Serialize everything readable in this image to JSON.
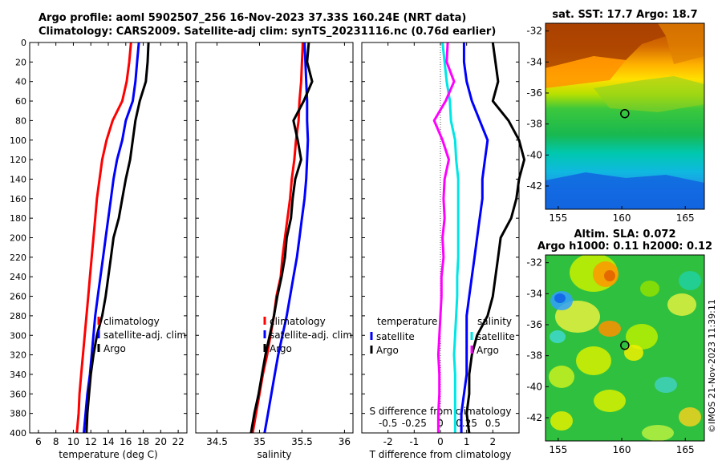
{
  "title": {
    "line1": "Argo profile: aoml 5902507_256 16-Nov-2023 37.33S 160.24E (NRT data)",
    "line2": "Climatology: CARS2009. Satellite-adj clim: synTS_20231116.nc (0.76d earlier)"
  },
  "credit": "©IMOS 21-Nov-2023 11:39:11",
  "colors": {
    "climatology": "#ff0000",
    "satellite": "#0000ff",
    "argo": "#000000",
    "salinity_sat": "#00e5e5",
    "salinity_argo": "#ff00ff"
  },
  "chart_data": [
    {
      "type": "line",
      "id": "temperature",
      "xlabel": "temperature (deg C)",
      "ylabel": "",
      "xlim": [
        5,
        23
      ],
      "ylim": [
        400,
        0
      ],
      "xticks": [
        "6",
        "8",
        "10",
        "12",
        "14",
        "16",
        "18",
        "20",
        "22"
      ],
      "xtick_values": [
        6,
        8,
        10,
        12,
        14,
        16,
        18,
        20,
        22
      ],
      "yticks": [
        0,
        20,
        40,
        60,
        80,
        100,
        120,
        140,
        160,
        180,
        200,
        220,
        240,
        260,
        280,
        300,
        320,
        340,
        360,
        380,
        400
      ],
      "legend": [
        "climatology",
        "satellite-adj. clim",
        "Argo"
      ],
      "series": [
        {
          "name": "climatology",
          "color": "#ff0000",
          "x": [
            16.6,
            16.4,
            16.1,
            15.6,
            14.5,
            13.8,
            13.3,
            13.0,
            12.7,
            12.5,
            12.3,
            12.1,
            11.9,
            11.7,
            11.5,
            11.3,
            11.1,
            10.9,
            10.7,
            10.6,
            10.4
          ],
          "y": [
            0,
            20,
            40,
            60,
            80,
            100,
            120,
            140,
            160,
            180,
            200,
            220,
            240,
            260,
            280,
            300,
            320,
            340,
            360,
            380,
            400
          ]
        },
        {
          "name": "satellite-adj. clim",
          "color": "#0000ff",
          "x": [
            17.5,
            17.3,
            17.1,
            16.8,
            16.0,
            15.6,
            15.0,
            14.6,
            14.3,
            14.0,
            13.7,
            13.4,
            13.1,
            12.8,
            12.5,
            12.3,
            12.1,
            11.9,
            11.6,
            11.4,
            11.2
          ],
          "y": [
            0,
            20,
            40,
            60,
            80,
            100,
            120,
            140,
            160,
            180,
            200,
            220,
            240,
            260,
            280,
            300,
            320,
            340,
            360,
            380,
            400
          ]
        },
        {
          "name": "Argo",
          "color": "#000000",
          "x": [
            18.6,
            18.5,
            18.3,
            17.6,
            17.1,
            16.8,
            16.5,
            16.0,
            15.6,
            15.2,
            14.6,
            14.3,
            14.0,
            13.7,
            13.3,
            12.7,
            12.3,
            12.0,
            11.8,
            11.6,
            11.5
          ],
          "y": [
            0,
            20,
            40,
            60,
            80,
            100,
            120,
            140,
            160,
            180,
            200,
            220,
            240,
            260,
            280,
            300,
            320,
            340,
            360,
            380,
            400
          ]
        }
      ]
    },
    {
      "type": "line",
      "id": "salinity",
      "xlabel": "salinity",
      "xlim": [
        34.25,
        36.1
      ],
      "ylim": [
        400,
        0
      ],
      "xticks": [
        "34.5",
        "35",
        "35.5",
        "36"
      ],
      "xtick_values": [
        34.5,
        35,
        35.5,
        36
      ],
      "legend": [
        "climatology",
        "satellite-adj. clim",
        "Argo"
      ],
      "series": [
        {
          "name": "climatology",
          "color": "#ff0000",
          "x": [
            35.51,
            35.5,
            35.49,
            35.47,
            35.46,
            35.43,
            35.41,
            35.38,
            35.36,
            35.33,
            35.3,
            35.27,
            35.25,
            35.2,
            35.17,
            35.13,
            35.09,
            35.04,
            35.0,
            34.96,
            34.92
          ],
          "y": [
            0,
            20,
            40,
            60,
            80,
            100,
            120,
            140,
            160,
            180,
            200,
            220,
            240,
            260,
            280,
            300,
            320,
            340,
            360,
            380,
            400
          ]
        },
        {
          "name": "satellite-adj. clim",
          "color": "#0000ff",
          "x": [
            35.53,
            35.54,
            35.55,
            35.56,
            35.56,
            35.57,
            35.56,
            35.55,
            35.53,
            35.5,
            35.47,
            35.44,
            35.4,
            35.36,
            35.32,
            35.27,
            35.22,
            35.18,
            35.14,
            35.1,
            35.06
          ],
          "y": [
            0,
            20,
            40,
            60,
            80,
            100,
            120,
            140,
            160,
            180,
            200,
            220,
            240,
            260,
            280,
            300,
            320,
            340,
            360,
            380,
            400
          ]
        },
        {
          "name": "Argo",
          "color": "#000000",
          "x": [
            35.58,
            35.56,
            35.62,
            35.52,
            35.4,
            35.45,
            35.49,
            35.42,
            35.39,
            35.37,
            35.32,
            35.3,
            35.26,
            35.21,
            35.17,
            35.12,
            35.07,
            35.03,
            34.99,
            34.94,
            34.9
          ],
          "y": [
            0,
            20,
            40,
            60,
            80,
            100,
            120,
            140,
            160,
            180,
            200,
            220,
            240,
            260,
            280,
            300,
            320,
            340,
            360,
            380,
            400
          ]
        }
      ]
    },
    {
      "type": "line",
      "id": "difference",
      "xlabel": "T difference from climatology",
      "top_axis_label": "S difference from climatology",
      "xlim": [
        -3,
        3
      ],
      "ylim": [
        400,
        0
      ],
      "xticks": [
        "-2",
        "-1",
        "0",
        "1",
        "2"
      ],
      "xtick_values": [
        -2,
        -1,
        0,
        1,
        2
      ],
      "s_ticks": [
        "-0.5",
        "-0.25",
        "0",
        "0.25",
        "0.5"
      ],
      "s_tick_values": [
        -0.5,
        -0.25,
        0,
        0.25,
        0.5
      ],
      "s_scale": 4,
      "legend_temperature": {
        "header": "temperature",
        "items": [
          "satellite",
          "Argo"
        ]
      },
      "legend_salinity": {
        "header": "salinity",
        "items": [
          "satellite",
          "Argo"
        ]
      },
      "series": [
        {
          "name": "T satellite",
          "color": "#0000ff",
          "x": [
            0.9,
            0.9,
            1.0,
            1.2,
            1.5,
            1.8,
            1.7,
            1.6,
            1.6,
            1.5,
            1.4,
            1.3,
            1.2,
            1.1,
            1.0,
            1.0,
            1.0,
            1.0,
            0.9,
            0.8,
            0.8
          ],
          "y": [
            0,
            20,
            40,
            60,
            80,
            100,
            120,
            140,
            160,
            180,
            200,
            220,
            240,
            260,
            280,
            300,
            320,
            340,
            360,
            380,
            400
          ]
        },
        {
          "name": "T Argo",
          "color": "#000000",
          "x": [
            2.0,
            2.1,
            2.2,
            2.0,
            2.6,
            3.0,
            3.2,
            3.0,
            2.9,
            2.7,
            2.3,
            2.2,
            2.1,
            2.0,
            1.8,
            1.4,
            1.2,
            1.1,
            1.1,
            1.0,
            1.1
          ],
          "y": [
            0,
            20,
            40,
            60,
            80,
            100,
            120,
            140,
            160,
            180,
            200,
            220,
            240,
            260,
            280,
            300,
            320,
            340,
            360,
            380,
            400
          ]
        },
        {
          "name": "S satellite",
          "color": "#00e5e5",
          "x": [
            0.02,
            0.04,
            0.06,
            0.09,
            0.1,
            0.14,
            0.15,
            0.17,
            0.17,
            0.17,
            0.17,
            0.17,
            0.16,
            0.16,
            0.15,
            0.14,
            0.13,
            0.14,
            0.14,
            0.14,
            0.14
          ],
          "y": [
            0,
            20,
            40,
            60,
            80,
            100,
            120,
            140,
            160,
            180,
            200,
            220,
            240,
            260,
            280,
            300,
            320,
            340,
            360,
            380,
            400
          ]
        },
        {
          "name": "S Argo",
          "color": "#ff00ff",
          "x": [
            0.07,
            0.06,
            0.13,
            0.05,
            -0.06,
            0.02,
            0.08,
            0.04,
            0.03,
            0.04,
            0.02,
            0.03,
            0.01,
            0.01,
            0.0,
            -0.01,
            -0.02,
            -0.01,
            -0.01,
            -0.02,
            -0.02
          ],
          "y": [
            0,
            20,
            40,
            60,
            80,
            100,
            120,
            140,
            160,
            180,
            200,
            220,
            240,
            260,
            280,
            300,
            320,
            340,
            360,
            380,
            400
          ]
        }
      ]
    },
    {
      "type": "heatmap",
      "id": "sst-map",
      "title": "sat. SST: 17.7 Argo: 18.7",
      "xlim": [
        154,
        166.5
      ],
      "ylim": [
        -43.5,
        -31.5
      ],
      "xticks": [
        "155",
        "160",
        "165"
      ],
      "xtick_values": [
        155,
        160,
        165
      ],
      "yticks": [
        "-32",
        "-34",
        "-36",
        "-38",
        "-40",
        "-42"
      ],
      "ytick_values": [
        -32,
        -34,
        -36,
        -38,
        -40,
        -42
      ],
      "marker": {
        "lon": 160.24,
        "lat": -37.33
      }
    },
    {
      "type": "heatmap",
      "id": "sla-map",
      "title_line1": "Altim. SLA: 0.072",
      "title_line2": "Argo h1000: 0.11 h2000: 0.12",
      "xlim": [
        154,
        166.5
      ],
      "ylim": [
        -43.5,
        -31.5
      ],
      "xticks": [
        "155",
        "160",
        "165"
      ],
      "xtick_values": [
        155,
        160,
        165
      ],
      "yticks": [
        "-32",
        "-34",
        "-36",
        "-38",
        "-40",
        "-42"
      ],
      "ytick_values": [
        -32,
        -34,
        -36,
        -38,
        -40,
        -42
      ],
      "marker": {
        "lon": 160.24,
        "lat": -37.33
      }
    }
  ]
}
